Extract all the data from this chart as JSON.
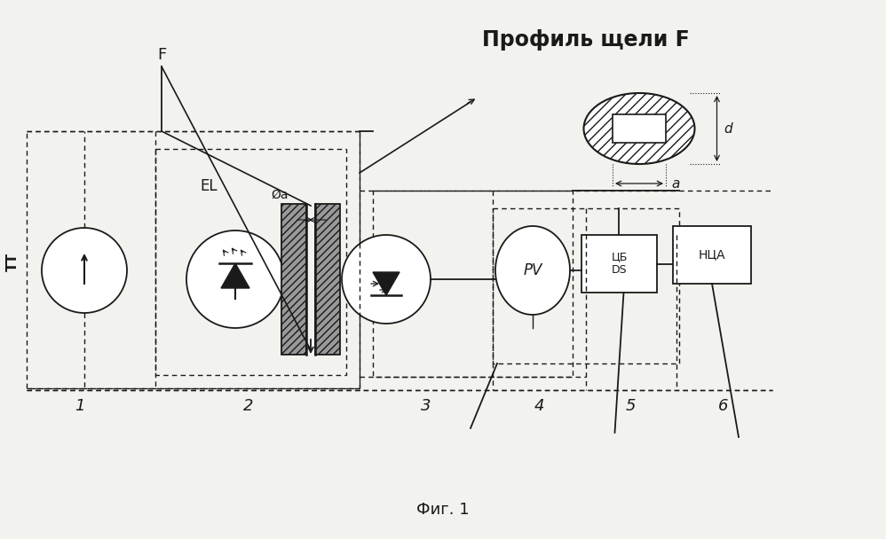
{
  "title": "Профиль щели F",
  "fig_caption": "Фиг. 1",
  "bg_color": "#f2f2ee",
  "line_color": "#1a1a1a",
  "lw_main": 1.3,
  "lw_dash": 1.0,
  "labels": {
    "F_top": "F",
    "EL": "EL",
    "phi_a": "Øa",
    "a_dim": "a",
    "PV": "PV",
    "DS": "ЦБ\nDS",
    "NLA": "НЦА",
    "T_left": "ТТ",
    "num1": "1",
    "num2": "2",
    "num3": "3",
    "num4": "4",
    "num5": "5",
    "num6": "6",
    "a_right": "a",
    "d_right": "d"
  },
  "layout": {
    "fig_w": 9.98,
    "fig_h": 6.08,
    "dpi": 100
  }
}
